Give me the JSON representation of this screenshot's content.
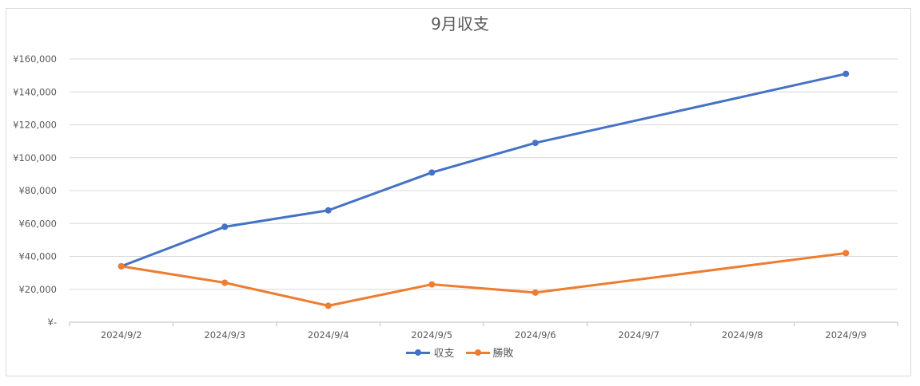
{
  "chart_data": {
    "type": "line",
    "title": "9月収支",
    "categories": [
      "2024/9/2",
      "2024/9/3",
      "2024/9/4",
      "2024/9/5",
      "2024/9/6",
      "2024/9/7",
      "2024/9/8",
      "2024/9/9"
    ],
    "series": [
      {
        "name": "収支",
        "color": "#4472C4",
        "values": [
          34000,
          58000,
          68000,
          91000,
          109000,
          null,
          null,
          151000
        ]
      },
      {
        "name": "勝敗",
        "color": "#ED7D31",
        "values": [
          34000,
          24000,
          10000,
          23000,
          18000,
          null,
          null,
          42000
        ]
      }
    ],
    "ylim": [
      0,
      160000
    ],
    "yticks": [
      0,
      20000,
      40000,
      60000,
      80000,
      100000,
      120000,
      140000,
      160000
    ],
    "ytick_labels": [
      "¥-",
      "¥20,000",
      "¥40,000",
      "¥60,000",
      "¥80,000",
      "¥100,000",
      "¥120,000",
      "¥140,000",
      "¥160,000"
    ],
    "grid": true,
    "legend_position": "bottom",
    "connect_gaps": true
  }
}
